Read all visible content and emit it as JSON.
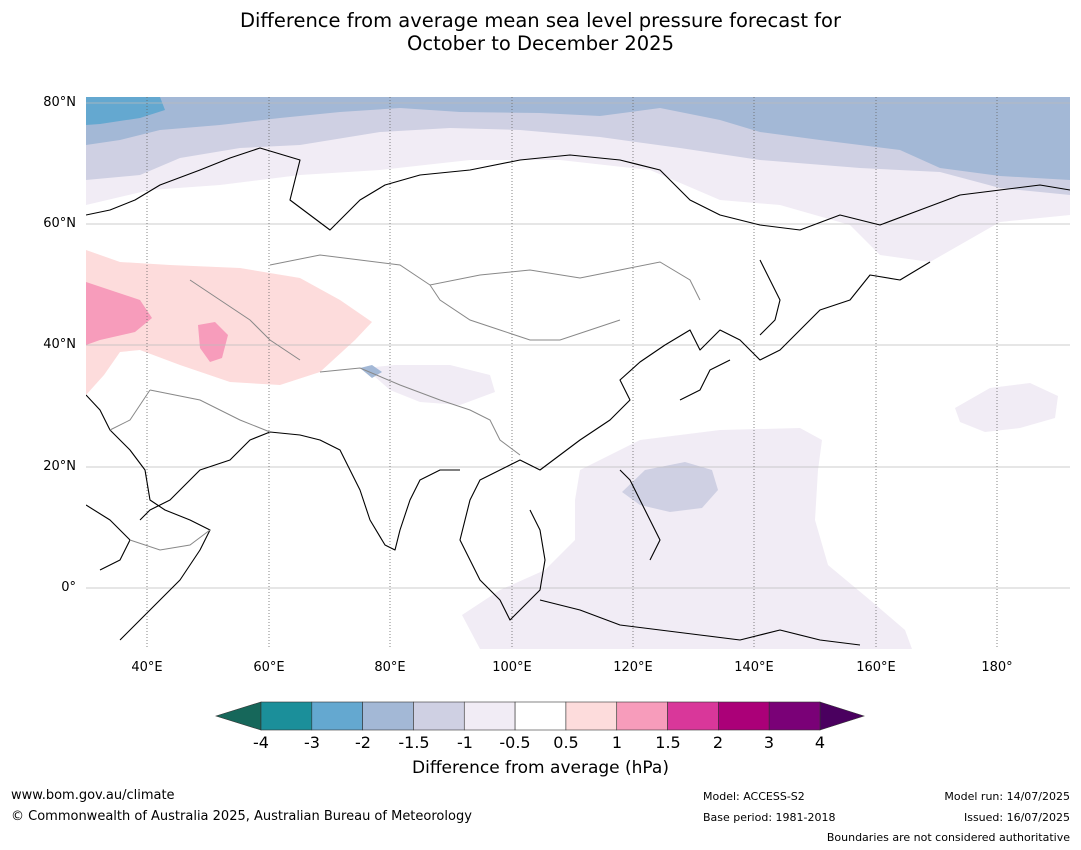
{
  "title": {
    "line1": "Difference from average mean sea level pressure forecast for",
    "line2": "October to December 2025"
  },
  "map": {
    "lat_labels": [
      "80°N",
      "60°N",
      "40°N",
      "20°N",
      "0°"
    ],
    "lon_labels": [
      "40°E",
      "60°E",
      "80°E",
      "100°E",
      "120°E",
      "140°E",
      "160°E",
      "180°"
    ],
    "extent": {
      "lon": [
        30,
        192
      ],
      "lat": [
        -10,
        80
      ]
    }
  },
  "colorbar": {
    "label": "Difference from average (hPa)",
    "ticks": [
      "-4",
      "-3",
      "-2",
      "-1.5",
      "-1",
      "-0.5",
      "0.5",
      "1",
      "1.5",
      "2",
      "3",
      "4"
    ],
    "colors": [
      "#16675a",
      "#1b8f9a",
      "#64a8d0",
      "#a3b8d6",
      "#cfd0e3",
      "#f1ecf5",
      "#ffffff",
      "#fddcdc",
      "#f79cbb",
      "#d9379a",
      "#ab0078",
      "#7a0177",
      "#4a005f"
    ]
  },
  "footer": {
    "website": "www.bom.gov.au/climate",
    "copyright": "© Commonwealth of Australia 2025, Australian Bureau of Meteorology",
    "model": "Model: ACCESS-S2",
    "base_period": "Base period: 1981-2018",
    "model_run": "Model run: 14/07/2025",
    "issued": "Issued: 16/07/2025",
    "disclaimer": "Boundaries are not considered authoritative"
  }
}
